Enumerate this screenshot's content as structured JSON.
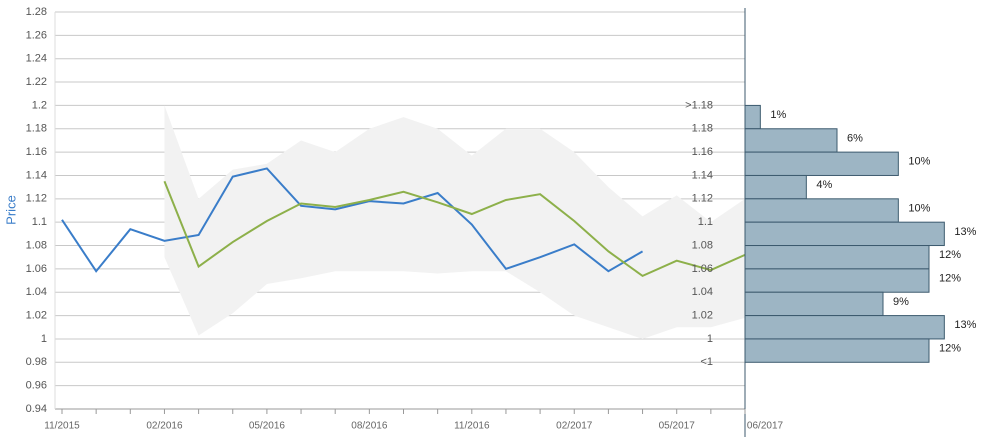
{
  "chart_data": {
    "type": "line",
    "y_label": "Price",
    "categories": [
      "11/2015",
      null,
      null,
      "02/2016",
      null,
      null,
      "05/2016",
      null,
      null,
      "08/2016",
      null,
      null,
      "11/2016",
      null,
      null,
      "02/2017",
      null,
      null,
      "05/2017",
      null,
      null
    ],
    "x_end_label": "06/2017",
    "ylim": [
      0.94,
      1.28
    ],
    "yticks": [
      0.94,
      0.96,
      0.98,
      1,
      1.02,
      1.04,
      1.06,
      1.08,
      1.1,
      1.12,
      1.14,
      1.16,
      1.18,
      1.2,
      1.22,
      1.24,
      1.26,
      1.28
    ],
    "grid": true,
    "band": {
      "color": "#f2f2f2",
      "upper": [
        null,
        null,
        null,
        1.2,
        1.12,
        1.145,
        1.15,
        1.17,
        1.16,
        1.18,
        1.19,
        1.18,
        1.157,
        1.18,
        1.18,
        1.16,
        1.13,
        1.105,
        1.123,
        1.1,
        1.12
      ],
      "lower": [
        null,
        null,
        null,
        1.07,
        1.003,
        1.022,
        1.047,
        1.052,
        1.058,
        1.058,
        1.058,
        1.056,
        1.058,
        1.058,
        1.04,
        1.02,
        1.01,
        1.0,
        1.01,
        1.01,
        1.018
      ]
    },
    "series": [
      {
        "color": "#3a7dc9",
        "values": [
          1.102,
          1.058,
          1.094,
          1.084,
          1.089,
          1.139,
          1.146,
          1.114,
          1.111,
          1.118,
          1.116,
          1.125,
          1.098,
          1.06,
          1.07,
          1.081,
          1.058,
          1.075,
          null,
          null,
          null
        ]
      },
      {
        "color": "#8db04a",
        "values": [
          null,
          null,
          null,
          1.135,
          1.062,
          1.083,
          1.101,
          1.116,
          1.113,
          1.119,
          1.126,
          1.117,
          1.107,
          1.119,
          1.124,
          1.101,
          1.075,
          1.054,
          1.067,
          1.059,
          1.072
        ]
      }
    ],
    "histogram": {
      "type": "bar",
      "color": "#9db5c4",
      "xlim": [
        0,
        15
      ],
      "bin_edges": [
        1.2,
        1.18,
        1.16,
        1.14,
        1.12,
        1.1,
        1.08,
        1.06,
        1.04,
        1.02,
        1,
        0.98
      ],
      "bin_labels": [
        ">1.18",
        "1.18",
        "1.16",
        "1.14",
        "1.12",
        "1.1",
        "1.08",
        "1.06",
        "1.04",
        "1.02",
        "1",
        "<1"
      ],
      "values": [
        1,
        6,
        10,
        4,
        10,
        13,
        12,
        12,
        9,
        13,
        12
      ],
      "value_labels": [
        "1%",
        "6%",
        "10%",
        "4%",
        "10%",
        "13%",
        "12%",
        "12%",
        "9%",
        "13%",
        "12%"
      ]
    }
  }
}
